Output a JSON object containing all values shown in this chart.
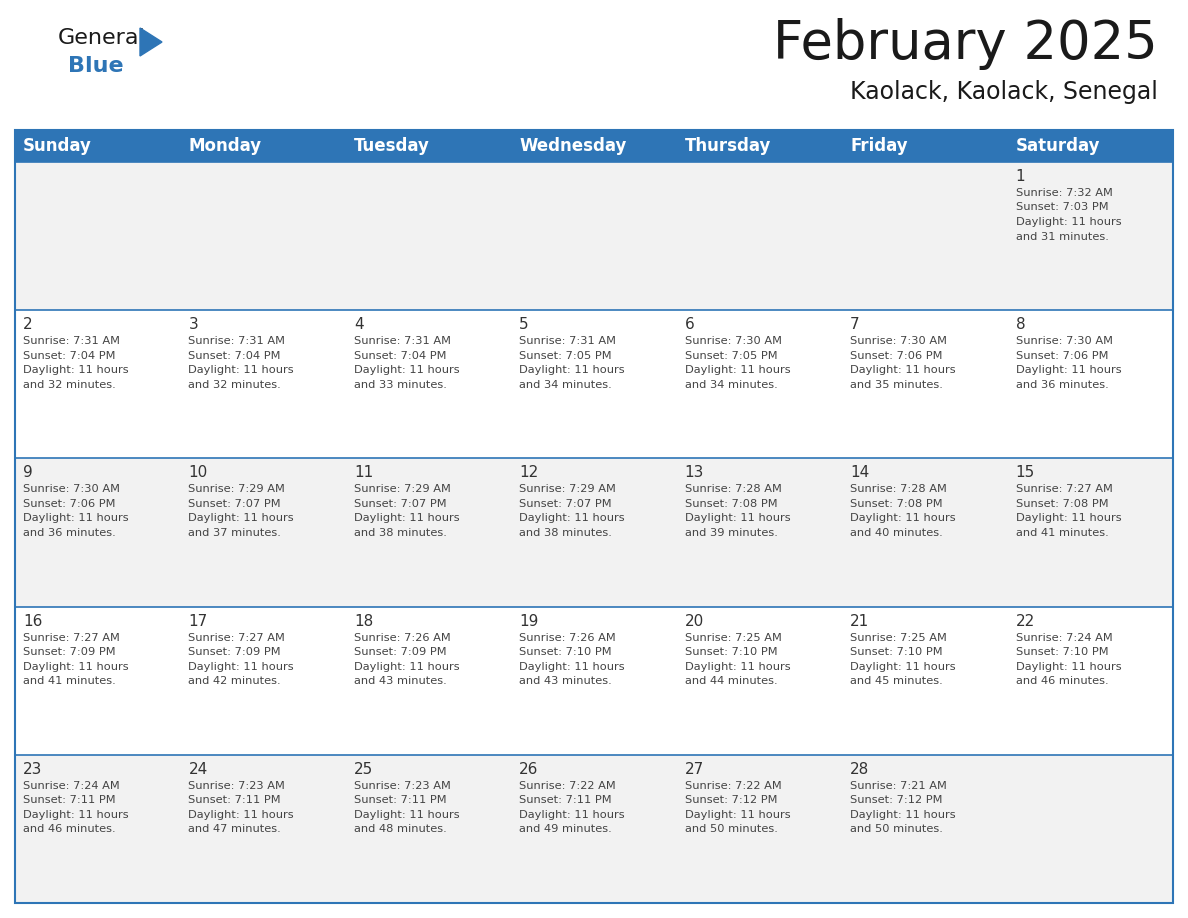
{
  "title": "February 2025",
  "subtitle": "Kaolack, Kaolack, Senegal",
  "header_bg": "#2E75B6",
  "header_text_color": "#FFFFFF",
  "cell_border_color": "#2E75B6",
  "day_number_color": "#333333",
  "text_color": "#444444",
  "bg_color": "#FFFFFF",
  "row_alt_bg": "#F0F0F0",
  "days_of_week": [
    "Sunday",
    "Monday",
    "Tuesday",
    "Wednesday",
    "Thursday",
    "Friday",
    "Saturday"
  ],
  "calendar": [
    [
      null,
      null,
      null,
      null,
      null,
      null,
      1
    ],
    [
      2,
      3,
      4,
      5,
      6,
      7,
      8
    ],
    [
      9,
      10,
      11,
      12,
      13,
      14,
      15
    ],
    [
      16,
      17,
      18,
      19,
      20,
      21,
      22
    ],
    [
      23,
      24,
      25,
      26,
      27,
      28,
      null
    ]
  ],
  "sunrise": {
    "1": "7:32 AM",
    "2": "7:31 AM",
    "3": "7:31 AM",
    "4": "7:31 AM",
    "5": "7:31 AM",
    "6": "7:30 AM",
    "7": "7:30 AM",
    "8": "7:30 AM",
    "9": "7:30 AM",
    "10": "7:29 AM",
    "11": "7:29 AM",
    "12": "7:29 AM",
    "13": "7:28 AM",
    "14": "7:28 AM",
    "15": "7:27 AM",
    "16": "7:27 AM",
    "17": "7:27 AM",
    "18": "7:26 AM",
    "19": "7:26 AM",
    "20": "7:25 AM",
    "21": "7:25 AM",
    "22": "7:24 AM",
    "23": "7:24 AM",
    "24": "7:23 AM",
    "25": "7:23 AM",
    "26": "7:22 AM",
    "27": "7:22 AM",
    "28": "7:21 AM"
  },
  "sunset": {
    "1": "7:03 PM",
    "2": "7:04 PM",
    "3": "7:04 PM",
    "4": "7:04 PM",
    "5": "7:05 PM",
    "6": "7:05 PM",
    "7": "7:06 PM",
    "8": "7:06 PM",
    "9": "7:06 PM",
    "10": "7:07 PM",
    "11": "7:07 PM",
    "12": "7:07 PM",
    "13": "7:08 PM",
    "14": "7:08 PM",
    "15": "7:08 PM",
    "16": "7:09 PM",
    "17": "7:09 PM",
    "18": "7:09 PM",
    "19": "7:10 PM",
    "20": "7:10 PM",
    "21": "7:10 PM",
    "22": "7:10 PM",
    "23": "7:11 PM",
    "24": "7:11 PM",
    "25": "7:11 PM",
    "26": "7:11 PM",
    "27": "7:12 PM",
    "28": "7:12 PM"
  },
  "daylight_hours": {
    "1": "11 hours and 31 minutes.",
    "2": "11 hours and 32 minutes.",
    "3": "11 hours and 32 minutes.",
    "4": "11 hours and 33 minutes.",
    "5": "11 hours and 34 minutes.",
    "6": "11 hours and 34 minutes.",
    "7": "11 hours and 35 minutes.",
    "8": "11 hours and 36 minutes.",
    "9": "11 hours and 36 minutes.",
    "10": "11 hours and 37 minutes.",
    "11": "11 hours and 38 minutes.",
    "12": "11 hours and 38 minutes.",
    "13": "11 hours and 39 minutes.",
    "14": "11 hours and 40 minutes.",
    "15": "11 hours and 41 minutes.",
    "16": "11 hours and 41 minutes.",
    "17": "11 hours and 42 minutes.",
    "18": "11 hours and 43 minutes.",
    "19": "11 hours and 43 minutes.",
    "20": "11 hours and 44 minutes.",
    "21": "11 hours and 45 minutes.",
    "22": "11 hours and 46 minutes.",
    "23": "11 hours and 46 minutes.",
    "24": "11 hours and 47 minutes.",
    "25": "11 hours and 48 minutes.",
    "26": "11 hours and 49 minutes.",
    "27": "11 hours and 50 minutes.",
    "28": "11 hours and 50 minutes."
  },
  "logo_general_color": "#1a1a1a",
  "logo_blue_color": "#2E75B6",
  "title_fontsize": 38,
  "subtitle_fontsize": 17,
  "header_fontsize": 12,
  "day_num_fontsize": 11,
  "cell_text_fontsize": 8.2
}
